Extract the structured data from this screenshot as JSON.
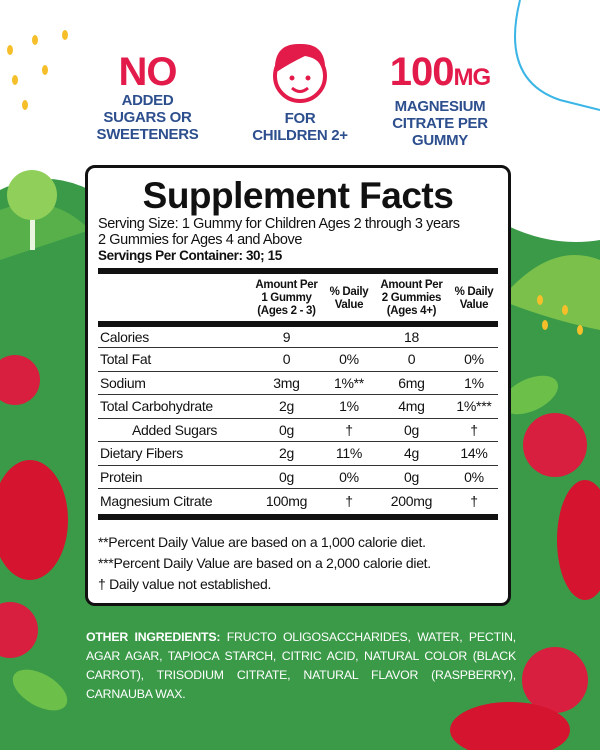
{
  "badges": [
    {
      "big": "NO",
      "lines": [
        "ADDED",
        "SUGARS OR",
        "SWEETENERS"
      ]
    },
    {
      "icon": "child-face-icon",
      "lines": [
        "FOR",
        "CHILDREN 2+"
      ]
    },
    {
      "big": "100",
      "big_unit": "MG",
      "lines": [
        "MAGNESIUM",
        "CITRATE PER",
        "GUMMY"
      ]
    }
  ],
  "facts": {
    "title": "Supplement Facts",
    "serving_size": "Serving Size: 1 Gummy for Children Ages 2 through 3 years",
    "serving_size_2": "2 Gummies for Ages 4 and Above",
    "servings_per_container": "Servings Per Container: 30; 15",
    "headers": {
      "amount1": [
        "Amount Per",
        "1 Gummy",
        "(Ages 2 - 3)"
      ],
      "dv1": [
        "% Daily",
        "Value"
      ],
      "amount2": [
        "Amount Per",
        "2 Gummies",
        "(Ages 4+)"
      ],
      "dv2": [
        "% Daily",
        "Value"
      ]
    },
    "rows": [
      {
        "name": "Calories",
        "a1": "9",
        "d1": "",
        "a2": "18",
        "d2": ""
      },
      {
        "name": "Total Fat",
        "a1": "0",
        "d1": "0%",
        "a2": "0",
        "d2": "0%"
      },
      {
        "name": "Sodium",
        "a1": "3mg",
        "d1": "1%**",
        "a2": "6mg",
        "d2": "1%"
      },
      {
        "name": "Total Carbohydrate",
        "a1": "2g",
        "d1": "1%",
        "a2": "4mg",
        "d2": "1%***"
      },
      {
        "name": "Added Sugars",
        "a1": "0g",
        "d1": "†",
        "a2": "0g",
        "d2": "†",
        "indent": true
      },
      {
        "name": "Dietary Fibers",
        "a1": "2g",
        "d1": "11%",
        "a2": "4g",
        "d2": "14%"
      },
      {
        "name": "Protein",
        "a1": "0g",
        "d1": "0%",
        "a2": "0g",
        "d2": "0%"
      },
      {
        "name": "Magnesium Citrate",
        "a1": "100mg",
        "d1": "†",
        "a2": "200mg",
        "d2": "†"
      }
    ],
    "footnotes": [
      "**Percent Daily Value are based on a 1,000 calorie diet.",
      "***Percent Daily Value  are based on a 2,000 calorie diet.",
      "† Daily value not established."
    ]
  },
  "ingredients": {
    "label": "OTHER INGREDIENTS:",
    "text": "FRUCTO OLIGOSACCHARIDES, WATER, PECTIN, AGAR AGAR, TAPIOCA STARCH, CITRIC ACID, NATURAL COLOR (BLACK CARROT), TRISODIUM CITRATE, NATURAL FLAVOR (RASPBERRY), CARNAUBA WAX."
  },
  "colors": {
    "green": "#3b9a48",
    "red": "#e31b4a",
    "navy": "#2d4f8e"
  }
}
